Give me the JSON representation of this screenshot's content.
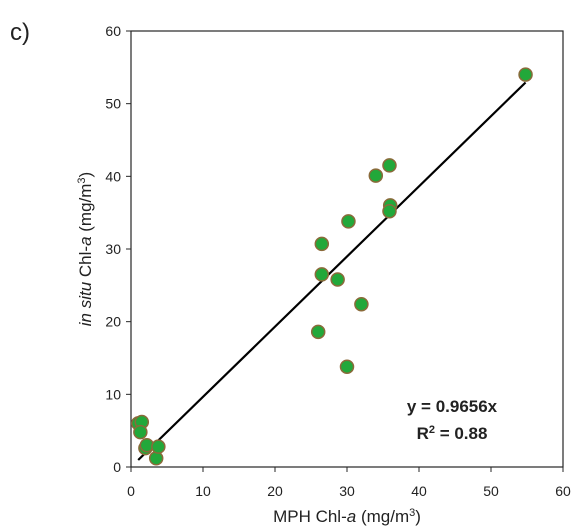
{
  "panel_label": "c)",
  "chart_data": {
    "type": "scatter",
    "title": "",
    "xlabel": {
      "prefix": "MPH Chl-",
      "italic": "a",
      "unit_open": " (mg/m",
      "superscript": "3",
      "unit_close": ")"
    },
    "ylabel": {
      "italic_lead": "in situ",
      "middle": " Chl-",
      "italic": "a",
      "unit_open": " (mg/m",
      "superscript": "3",
      "unit_close": ")"
    },
    "xlim": [
      0,
      60
    ],
    "ylim": [
      0,
      60
    ],
    "xticks": [
      0,
      10,
      20,
      30,
      40,
      50,
      60
    ],
    "yticks": [
      0,
      10,
      20,
      30,
      40,
      50,
      60
    ],
    "grid": false,
    "marker_fill": "#22a83a",
    "marker_edge": "#8a6a3a",
    "line_color": "#000000",
    "points": [
      {
        "x": 1.0,
        "y": 6.0
      },
      {
        "x": 1.5,
        "y": 6.2
      },
      {
        "x": 1.3,
        "y": 4.8
      },
      {
        "x": 2.0,
        "y": 2.6
      },
      {
        "x": 2.2,
        "y": 3.0
      },
      {
        "x": 3.5,
        "y": 1.2
      },
      {
        "x": 3.8,
        "y": 2.8
      },
      {
        "x": 26.0,
        "y": 18.6
      },
      {
        "x": 26.5,
        "y": 26.5
      },
      {
        "x": 26.5,
        "y": 30.7
      },
      {
        "x": 28.7,
        "y": 25.8
      },
      {
        "x": 30.0,
        "y": 13.8
      },
      {
        "x": 30.2,
        "y": 33.8
      },
      {
        "x": 32.0,
        "y": 22.4
      },
      {
        "x": 34.0,
        "y": 40.1
      },
      {
        "x": 35.9,
        "y": 41.5
      },
      {
        "x": 36.0,
        "y": 36.0
      },
      {
        "x": 35.9,
        "y": 35.2
      },
      {
        "x": 54.8,
        "y": 54.0
      }
    ],
    "trendline": {
      "slope": 0.9656,
      "x_range": [
        1.0,
        54.8
      ]
    },
    "annotation": {
      "equation": "y = 0.9656x",
      "r2_lead": "R",
      "r2_sup": "2",
      "r2_tail": " = 0.88"
    }
  }
}
